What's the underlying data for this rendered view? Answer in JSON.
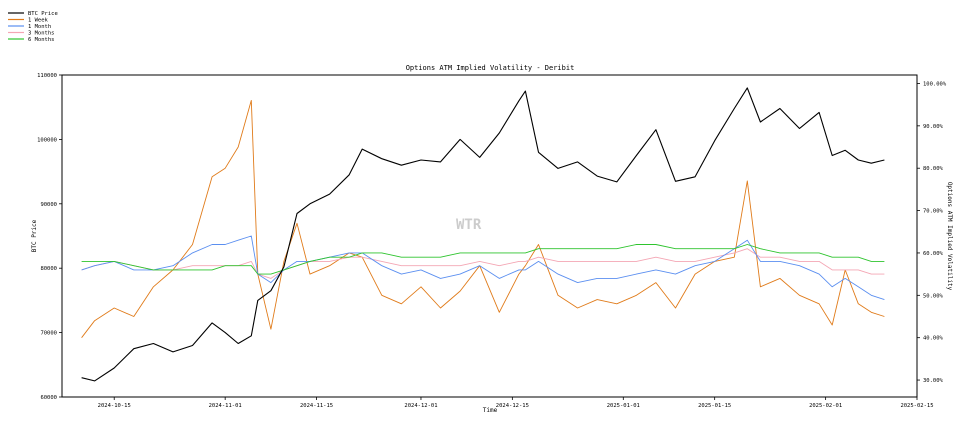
{
  "chart_data": {
    "type": "line",
    "title": "Options ATM Implied Volatility - Deribit",
    "xlabel": "Time",
    "ylabel_left": "BTC Price",
    "ylabel_right": "Options ATM Implied Volatility",
    "watermark": "WTR",
    "xlim": [
      "2024-10-07",
      "2025-02-15"
    ],
    "x_ticks": [
      "2024-10-15",
      "2024-11-01",
      "2024-11-15",
      "2024-12-01",
      "2024-12-15",
      "2025-01-01",
      "2025-01-15",
      "2025-02-01",
      "2025-02-15"
    ],
    "ylim_left": [
      60000,
      110000
    ],
    "y_ticks_left": [
      "60000",
      "70000",
      "80000",
      "90000",
      "100000",
      "110000"
    ],
    "ylim_right": [
      0.26,
      1.02
    ],
    "y_ticks_right": [
      "30.00%",
      "40.00%",
      "50.00%",
      "60.00%",
      "70.00%",
      "80.00%",
      "90.00%",
      "100.00%"
    ],
    "y_tick_values_right": [
      0.3,
      0.4,
      0.5,
      0.6,
      0.7,
      0.8,
      0.9,
      1.0
    ],
    "grid": false,
    "legend_position": "top-left",
    "x": [
      "2024-10-10",
      "2024-10-12",
      "2024-10-15",
      "2024-10-18",
      "2024-10-21",
      "2024-10-24",
      "2024-10-27",
      "2024-10-30",
      "2024-11-01",
      "2024-11-03",
      "2024-11-05",
      "2024-11-06",
      "2024-11-08",
      "2024-11-10",
      "2024-11-12",
      "2024-11-14",
      "2024-11-17",
      "2024-11-20",
      "2024-11-22",
      "2024-11-25",
      "2024-11-28",
      "2024-12-01",
      "2024-12-04",
      "2024-12-07",
      "2024-12-10",
      "2024-12-13",
      "2024-12-16",
      "2024-12-17",
      "2024-12-19",
      "2024-12-22",
      "2024-12-25",
      "2024-12-28",
      "2024-12-31",
      "2025-01-03",
      "2025-01-06",
      "2025-01-09",
      "2025-01-12",
      "2025-01-15",
      "2025-01-18",
      "2025-01-20",
      "2025-01-22",
      "2025-01-25",
      "2025-01-28",
      "2025-01-31",
      "2025-02-02",
      "2025-02-04",
      "2025-02-06",
      "2025-02-08",
      "2025-02-10"
    ],
    "series": [
      {
        "name": "BTC Price",
        "axis": "left",
        "color": "#000000",
        "values": [
          63000,
          62500,
          64500,
          67500,
          68300,
          67000,
          68000,
          71500,
          70000,
          68300,
          69500,
          75000,
          76500,
          80200,
          88500,
          90000,
          91500,
          94500,
          98500,
          97000,
          96000,
          96800,
          96500,
          100000,
          97200,
          101000,
          106000,
          107500,
          98000,
          95500,
          96500,
          94300,
          93400,
          97500,
          101500,
          93500,
          94200,
          99800,
          104800,
          108000,
          102700,
          104800,
          101700,
          104200,
          97500,
          98300,
          96800,
          96300,
          96800
        ]
      },
      {
        "name": "1 Week",
        "axis": "right",
        "color": "#e07b1a",
        "values": [
          0.4,
          0.44,
          0.47,
          0.45,
          0.52,
          0.56,
          0.62,
          0.78,
          0.8,
          0.85,
          0.96,
          0.55,
          0.42,
          0.58,
          0.67,
          0.55,
          0.57,
          0.6,
          0.59,
          0.5,
          0.48,
          0.52,
          0.47,
          0.51,
          0.57,
          0.46,
          0.55,
          0.57,
          0.62,
          0.5,
          0.47,
          0.49,
          0.48,
          0.5,
          0.53,
          0.47,
          0.55,
          0.58,
          0.59,
          0.77,
          0.52,
          0.54,
          0.5,
          0.48,
          0.43,
          0.56,
          0.48,
          0.46,
          0.45
        ]
      },
      {
        "name": "1 Month",
        "axis": "right",
        "color": "#5b8ff0",
        "values": [
          0.56,
          0.57,
          0.58,
          0.56,
          0.56,
          0.57,
          0.6,
          0.62,
          0.62,
          0.63,
          0.64,
          0.55,
          0.53,
          0.56,
          0.58,
          0.58,
          0.59,
          0.6,
          0.6,
          0.57,
          0.55,
          0.56,
          0.54,
          0.55,
          0.57,
          0.54,
          0.56,
          0.56,
          0.58,
          0.55,
          0.53,
          0.54,
          0.54,
          0.55,
          0.56,
          0.55,
          0.57,
          0.58,
          0.61,
          0.63,
          0.58,
          0.58,
          0.57,
          0.55,
          0.52,
          0.54,
          0.52,
          0.5,
          0.49
        ]
      },
      {
        "name": "3 Months",
        "axis": "right",
        "color": "#f4a6b4",
        "values": [
          0.56,
          0.57,
          0.58,
          0.57,
          0.56,
          0.56,
          0.57,
          0.57,
          0.57,
          0.57,
          0.58,
          0.55,
          0.54,
          0.56,
          0.57,
          0.58,
          0.58,
          0.59,
          0.59,
          0.58,
          0.57,
          0.57,
          0.57,
          0.57,
          0.58,
          0.57,
          0.58,
          0.58,
          0.59,
          0.58,
          0.58,
          0.58,
          0.58,
          0.58,
          0.59,
          0.58,
          0.58,
          0.59,
          0.6,
          0.61,
          0.59,
          0.59,
          0.58,
          0.58,
          0.56,
          0.56,
          0.56,
          0.55,
          0.55
        ]
      },
      {
        "name": "6 Months",
        "axis": "right",
        "color": "#2ec42e",
        "values": [
          0.58,
          0.58,
          0.58,
          0.57,
          0.56,
          0.56,
          0.56,
          0.56,
          0.57,
          0.57,
          0.57,
          0.55,
          0.55,
          0.56,
          0.57,
          0.58,
          0.59,
          0.59,
          0.6,
          0.6,
          0.59,
          0.59,
          0.59,
          0.6,
          0.6,
          0.6,
          0.6,
          0.6,
          0.61,
          0.61,
          0.61,
          0.61,
          0.61,
          0.62,
          0.62,
          0.61,
          0.61,
          0.61,
          0.61,
          0.62,
          0.61,
          0.6,
          0.6,
          0.6,
          0.59,
          0.59,
          0.59,
          0.58,
          0.58
        ]
      }
    ]
  }
}
